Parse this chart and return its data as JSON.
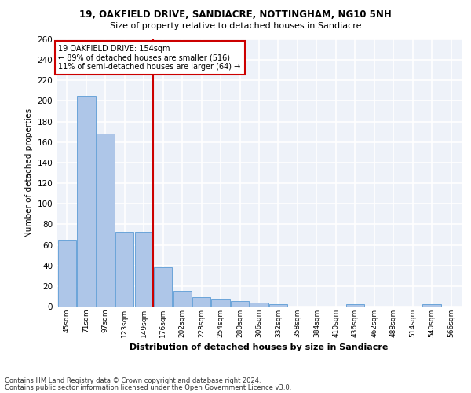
{
  "title_line1": "19, OAKFIELD DRIVE, SANDIACRE, NOTTINGHAM, NG10 5NH",
  "title_line2": "Size of property relative to detached houses in Sandiacre",
  "xlabel": "Distribution of detached houses by size in Sandiacre",
  "ylabel": "Number of detached properties",
  "categories": [
    "45sqm",
    "71sqm",
    "97sqm",
    "123sqm",
    "149sqm",
    "176sqm",
    "202sqm",
    "228sqm",
    "254sqm",
    "280sqm",
    "306sqm",
    "332sqm",
    "358sqm",
    "384sqm",
    "410sqm",
    "436sqm",
    "462sqm",
    "488sqm",
    "514sqm",
    "540sqm",
    "566sqm"
  ],
  "values": [
    65,
    205,
    168,
    73,
    73,
    38,
    15,
    9,
    7,
    5,
    4,
    2,
    0,
    0,
    0,
    2,
    0,
    0,
    0,
    2,
    0
  ],
  "bar_color": "#aec6e8",
  "bar_edge_color": "#5b9bd5",
  "vline_x": 4.5,
  "vline_color": "#cc0000",
  "annotation_text": "19 OAKFIELD DRIVE: 154sqm\n← 89% of detached houses are smaller (516)\n11% of semi-detached houses are larger (64) →",
  "annotation_box_color": "#ffffff",
  "annotation_box_edge": "#cc0000",
  "ylim": [
    0,
    260
  ],
  "yticks": [
    0,
    20,
    40,
    60,
    80,
    100,
    120,
    140,
    160,
    180,
    200,
    220,
    240,
    260
  ],
  "bg_color": "#eef2f9",
  "grid_color": "#ffffff",
  "footer_line1": "Contains HM Land Registry data © Crown copyright and database right 2024.",
  "footer_line2": "Contains public sector information licensed under the Open Government Licence v3.0."
}
